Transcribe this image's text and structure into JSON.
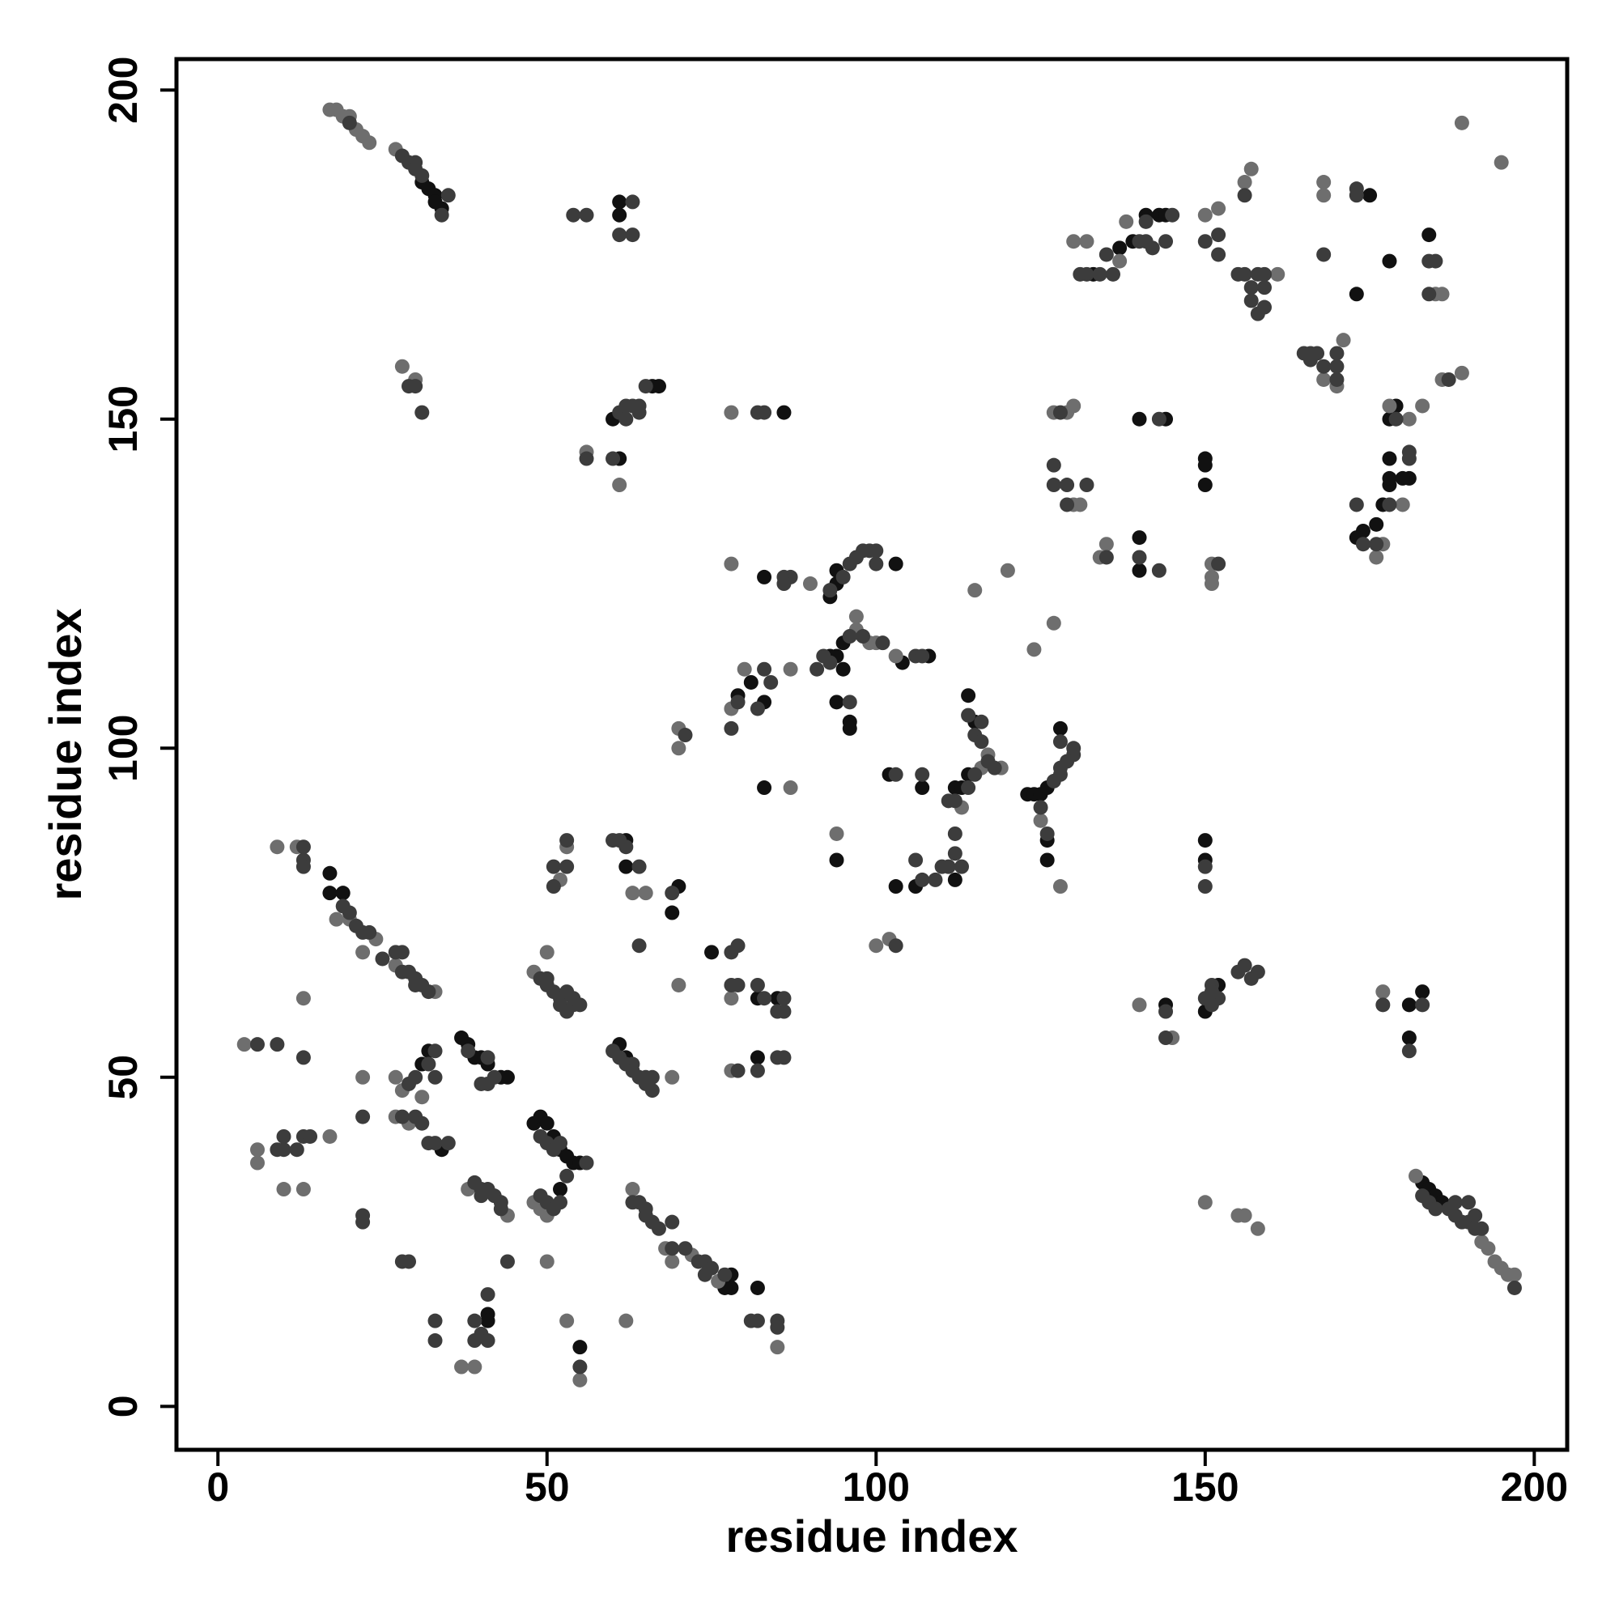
{
  "chart_data": {
    "type": "scatter",
    "xlabel": "residue index",
    "ylabel": "residue index",
    "xlim": [
      -6.3,
      205
    ],
    "ylim": [
      -6.6,
      204.7
    ],
    "xticks": [
      0,
      50,
      100,
      150,
      200
    ],
    "yticks": [
      0,
      50,
      100,
      150,
      200
    ],
    "series": [
      {
        "color": "#111111",
        "x": [
          31,
          32,
          33,
          33,
          34,
          61,
          61,
          60,
          61,
          66,
          67,
          86,
          83,
          94,
          94,
          93,
          103,
          93,
          94,
          95,
          95,
          104,
          108,
          79,
          81,
          83,
          94,
          96,
          96,
          94,
          83,
          102,
          107,
          112,
          113,
          114,
          114,
          115,
          123,
          124,
          125,
          126,
          128,
          126,
          126,
          106,
          103,
          112,
          133,
          137,
          139,
          141,
          143,
          144,
          175,
          178,
          173,
          184,
          174,
          173,
          176,
          177,
          178,
          178,
          178,
          178,
          179,
          181,
          180,
          140,
          144,
          150,
          150,
          150,
          140,
          140,
          150,
          150,
          144,
          152,
          150,
          181,
          183,
          181,
          183,
          184,
          185,
          186,
          17,
          17,
          19,
          37,
          38,
          39,
          40,
          41,
          43,
          44,
          48,
          49,
          50,
          51,
          52,
          53,
          54,
          55,
          52,
          55,
          41,
          41,
          62,
          62,
          69,
          75,
          78,
          78,
          77,
          82,
          82,
          85,
          82,
          62,
          61,
          32,
          31,
          34,
          70
        ],
        "values": [
          186,
          185,
          184,
          183,
          182,
          183,
          181,
          150,
          144,
          155,
          155,
          151,
          126,
          125,
          127,
          123,
          128,
          114,
          114,
          112,
          116,
          113,
          114,
          108,
          110,
          107,
          107,
          104,
          103,
          83,
          94,
          96,
          94,
          94,
          94,
          96,
          108,
          104,
          93,
          93,
          93,
          94,
          103,
          86,
          83,
          79,
          79,
          80,
          172,
          176,
          177,
          181,
          181,
          181,
          184,
          174,
          169,
          178,
          133,
          132,
          134,
          137,
          140,
          141,
          144,
          150,
          152,
          141,
          141,
          150,
          150,
          144,
          143,
          140,
          132,
          127,
          86,
          83,
          61,
          64,
          60,
          61,
          63,
          56,
          34,
          33,
          32,
          31,
          81,
          78,
          78,
          56,
          55,
          53,
          53,
          52,
          50,
          50,
          43,
          44,
          43,
          41,
          39,
          38,
          37,
          37,
          33,
          9,
          14,
          13,
          86,
          82,
          75,
          69,
          20,
          18,
          18,
          18,
          62,
          62,
          53,
          53,
          55,
          54,
          52,
          39,
          79
        ]
      },
      {
        "color": "#6e6e6e",
        "x": [
          17,
          18,
          19,
          20,
          21,
          22,
          23,
          27,
          28,
          30,
          56,
          61,
          78,
          78,
          90,
          97,
          97,
          99,
          100,
          103,
          78,
          80,
          87,
          70,
          70,
          94,
          87,
          116,
          119,
          117,
          113,
          124,
          120,
          127,
          115,
          128,
          125,
          100,
          102,
          130,
          132,
          137,
          138,
          150,
          152,
          156,
          157,
          161,
          168,
          168,
          171,
          168,
          170,
          186,
          185,
          186,
          189,
          195,
          189,
          176,
          177,
          178,
          181,
          183,
          180,
          127,
          129,
          130,
          130,
          131,
          134,
          135,
          151,
          151,
          151,
          140,
          145,
          150,
          155,
          156,
          158,
          177,
          182,
          192,
          193,
          194,
          195,
          196,
          197,
          9,
          12,
          13,
          4,
          6,
          6,
          10,
          13,
          17,
          22,
          27,
          28,
          27,
          38,
          44,
          48,
          49,
          50,
          50,
          37,
          39,
          53,
          55,
          50,
          48,
          52,
          53,
          63,
          65,
          69,
          62,
          63,
          68,
          69,
          72,
          76,
          85,
          78,
          70,
          78,
          20,
          18,
          22,
          24,
          27,
          33,
          29,
          31
        ],
        "values": [
          197,
          197,
          196,
          196,
          194,
          193,
          192,
          191,
          158,
          156,
          145,
          140,
          151,
          128,
          125,
          118,
          120,
          116,
          116,
          114,
          106,
          112,
          112,
          103,
          100,
          87,
          94,
          97,
          97,
          99,
          91,
          115,
          127,
          119,
          124,
          79,
          89,
          70,
          71,
          177,
          177,
          174,
          180,
          181,
          182,
          186,
          188,
          172,
          186,
          184,
          162,
          156,
          155,
          169,
          169,
          156,
          195,
          189,
          157,
          129,
          131,
          152,
          150,
          152,
          137,
          151,
          151,
          152,
          137,
          137,
          129,
          131,
          128,
          126,
          125,
          61,
          56,
          31,
          29,
          29,
          27,
          63,
          35,
          25,
          24,
          22,
          21,
          20,
          20,
          85,
          85,
          62,
          55,
          39,
          37,
          33,
          33,
          41,
          50,
          50,
          48,
          44,
          33,
          29,
          31,
          30,
          29,
          22,
          6,
          6,
          13,
          4,
          69,
          66,
          80,
          85,
          78,
          78,
          50,
          13,
          33,
          24,
          22,
          23,
          19,
          9,
          62,
          64,
          51,
          74,
          74,
          69,
          71,
          67,
          63,
          43,
          47
        ]
      },
      {
        "color": "#3c3c3c",
        "x": [
          20,
          28,
          29,
          30,
          30,
          31,
          34,
          35,
          54,
          56,
          63,
          61,
          63,
          29,
          30,
          31,
          56,
          60,
          61,
          62,
          63,
          64,
          64,
          65,
          62,
          82,
          83,
          86,
          87,
          86,
          93,
          95,
          96,
          97,
          98,
          99,
          100,
          100,
          91,
          92,
          93,
          96,
          98,
          101,
          106,
          107,
          79,
          83,
          84,
          82,
          78,
          96,
          71,
          103,
          107,
          115,
          117,
          118,
          114,
          111,
          112,
          114,
          116,
          115,
          116,
          127,
          128,
          128,
          129,
          130,
          130,
          128,
          125,
          126,
          109,
          113,
          110,
          111,
          112,
          112,
          107,
          106,
          103,
          131,
          132,
          134,
          135,
          136,
          140,
          141,
          141,
          142,
          144,
          145,
          150,
          152,
          152,
          156,
          155,
          156,
          157,
          157,
          158,
          158,
          159,
          159,
          159,
          165,
          166,
          166,
          167,
          168,
          170,
          170,
          170,
          168,
          173,
          173,
          184,
          185,
          184,
          187,
          174,
          173,
          176,
          178,
          179,
          181,
          181,
          128,
          127,
          127,
          129,
          129,
          132,
          135,
          140,
          143,
          143,
          152,
          150,
          150,
          150,
          151,
          151,
          152,
          151,
          155,
          156,
          157,
          158,
          144,
          144,
          177,
          183,
          181,
          183,
          184,
          185,
          187,
          188,
          189,
          190,
          191,
          192,
          197,
          188,
          190,
          191,
          13,
          13,
          13,
          19,
          20,
          21,
          22,
          23,
          25,
          27,
          28,
          28,
          29,
          30,
          30,
          31,
          32,
          38,
          41,
          42,
          41,
          40,
          6,
          9,
          13,
          22,
          29,
          30,
          32,
          33,
          33,
          28,
          30,
          31,
          32,
          33,
          35,
          9,
          10,
          10,
          12,
          13,
          14,
          22,
          22,
          39,
          40,
          40,
          41,
          42,
          43,
          43,
          44,
          49,
          50,
          51,
          52,
          53,
          28,
          29,
          33,
          33,
          39,
          39,
          40,
          41,
          41,
          55,
          49,
          50,
          50,
          51,
          52,
          52,
          53,
          54,
          55,
          53,
          54,
          53,
          53,
          51,
          51,
          49,
          50,
          56,
          51,
          52,
          60,
          61,
          62,
          63,
          63,
          64,
          65,
          65,
          66,
          66,
          60,
          61,
          62,
          64,
          64,
          63,
          64,
          65,
          65,
          66,
          67,
          69,
          69,
          71,
          73,
          74,
          74,
          75,
          77,
          81,
          82,
          85,
          85,
          69,
          78,
          79,
          78,
          79,
          82,
          83,
          86,
          85,
          86,
          85,
          86,
          79,
          82
        ],
        "values": [
          195,
          190,
          189,
          189,
          188,
          187,
          181,
          184,
          181,
          181,
          183,
          178,
          178,
          155,
          155,
          151,
          144,
          144,
          151,
          152,
          152,
          151,
          152,
          155,
          150,
          151,
          151,
          126,
          126,
          125,
          124,
          126,
          128,
          129,
          130,
          130,
          130,
          128,
          112,
          114,
          113,
          117,
          117,
          116,
          114,
          114,
          107,
          112,
          110,
          106,
          103,
          107,
          102,
          96,
          96,
          96,
          98,
          97,
          94,
          92,
          92,
          105,
          104,
          102,
          101,
          95,
          96,
          97,
          98,
          99,
          100,
          101,
          91,
          87,
          80,
          82,
          82,
          82,
          84,
          87,
          80,
          83,
          70,
          172,
          172,
          172,
          175,
          172,
          177,
          177,
          180,
          176,
          177,
          181,
          177,
          178,
          175,
          184,
          172,
          172,
          170,
          168,
          172,
          166,
          167,
          170,
          172,
          160,
          160,
          159,
          160,
          158,
          160,
          158,
          156,
          175,
          185,
          184,
          174,
          174,
          169,
          156,
          131,
          137,
          131,
          137,
          150,
          145,
          144,
          151,
          143,
          140,
          140,
          137,
          140,
          129,
          129,
          127,
          150,
          128,
          82,
          79,
          62,
          64,
          63,
          62,
          61,
          66,
          67,
          65,
          66,
          60,
          56,
          61,
          61,
          54,
          32,
          31,
          30,
          30,
          29,
          28,
          28,
          27,
          27,
          18,
          31,
          31,
          29,
          85,
          83,
          82,
          76,
          75,
          73,
          72,
          72,
          68,
          69,
          69,
          66,
          66,
          65,
          64,
          64,
          63,
          54,
          53,
          50,
          49,
          49,
          55,
          55,
          53,
          44,
          49,
          50,
          52,
          50,
          54,
          44,
          44,
          43,
          40,
          40,
          40,
          39,
          39,
          41,
          39,
          41,
          41,
          29,
          28,
          34,
          33,
          32,
          33,
          32,
          31,
          30,
          22,
          32,
          31,
          30,
          31,
          35,
          22,
          22,
          13,
          10,
          10,
          13,
          11,
          10,
          17,
          6,
          65,
          65,
          64,
          63,
          62,
          61,
          60,
          61,
          61,
          63,
          62,
          82,
          86,
          82,
          79,
          41,
          40,
          37,
          39,
          40,
          54,
          53,
          52,
          52,
          51,
          50,
          50,
          49,
          48,
          50,
          86,
          86,
          85,
          82,
          70,
          31,
          31,
          30,
          29,
          28,
          27,
          24,
          28,
          24,
          22,
          22,
          20,
          21,
          20,
          13,
          13,
          13,
          12,
          78,
          69,
          70,
          64,
          64,
          64,
          62,
          62,
          60,
          60,
          53,
          53,
          51,
          51
        ]
      }
    ]
  }
}
